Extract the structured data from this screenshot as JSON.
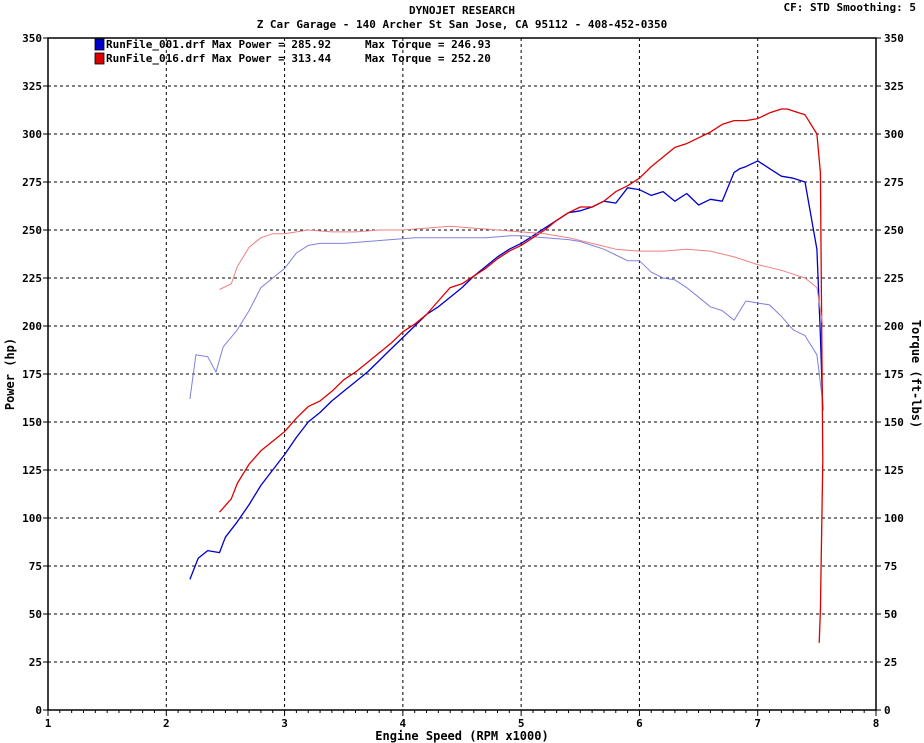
{
  "chart_data": {
    "type": "line",
    "title": "DYNOJET RESEARCH",
    "subtitle": "Z Car Garage - 140 Archer St San Jose, CA 95112 - 408-452-0350",
    "settings": "CF: STD  Smoothing: 5",
    "xlabel": "Engine Speed (RPM x1000)",
    "ylabel_left": "Power (hp)",
    "ylabel_right": "Torque (ft-lbs)",
    "xlim": [
      1,
      8
    ],
    "ylim": [
      0,
      350
    ],
    "x_ticks": [
      1,
      2,
      3,
      4,
      5,
      6,
      7,
      8
    ],
    "y_ticks": [
      0,
      25,
      50,
      75,
      100,
      125,
      150,
      175,
      200,
      225,
      250,
      275,
      300,
      325,
      350
    ],
    "grid": true,
    "legend_position": "top-left",
    "legend": [
      {
        "label": "RunFile_001.drf Max Power = 285.92",
        "torque_label": "Max Torque = 246.93",
        "color": "#0000cc"
      },
      {
        "label": "RunFile_016.drf Max Power = 313.44",
        "torque_label": "Max Torque = 252.20",
        "color": "#dd0000"
      }
    ],
    "series": [
      {
        "name": "RunFile_001.drf",
        "measure": "power",
        "color": "#0000cc",
        "x": [
          2.2,
          2.27,
          2.35,
          2.45,
          2.5,
          2.6,
          2.7,
          2.8,
          2.9,
          3.0,
          3.1,
          3.2,
          3.3,
          3.4,
          3.5,
          3.6,
          3.7,
          3.8,
          3.9,
          4.0,
          4.1,
          4.2,
          4.3,
          4.4,
          4.5,
          4.6,
          4.7,
          4.8,
          4.9,
          5.0,
          5.1,
          5.2,
          5.3,
          5.4,
          5.5,
          5.6,
          5.7,
          5.8,
          5.9,
          6.0,
          6.1,
          6.2,
          6.3,
          6.4,
          6.5,
          6.6,
          6.7,
          6.8,
          6.85,
          6.9,
          7.0,
          7.05,
          7.1,
          7.2,
          7.3,
          7.4,
          7.5,
          7.53,
          7.55
        ],
        "values": [
          68,
          79,
          83,
          82,
          90,
          98,
          107,
          117,
          125,
          133,
          142,
          150,
          155,
          161,
          166,
          171,
          176,
          182,
          188,
          194,
          200,
          206,
          210,
          215,
          220,
          226,
          231,
          236,
          240,
          243,
          247,
          251,
          255,
          259,
          260,
          262,
          265,
          264,
          272,
          271,
          268,
          270,
          265,
          269,
          263,
          266,
          265,
          280,
          282,
          283,
          286,
          284,
          282,
          278,
          277,
          275,
          240,
          195,
          156
        ]
      },
      {
        "name": "RunFile_001.drf",
        "measure": "torque",
        "color": "#8080dd",
        "x": [
          2.2,
          2.25,
          2.35,
          2.42,
          2.48,
          2.6,
          2.7,
          2.8,
          2.9,
          3.0,
          3.1,
          3.2,
          3.3,
          3.5,
          3.7,
          3.9,
          4.1,
          4.3,
          4.5,
          4.7,
          4.9,
          5.0,
          5.2,
          5.4,
          5.5,
          5.6,
          5.7,
          5.8,
          5.9,
          6.0,
          6.1,
          6.2,
          6.3,
          6.4,
          6.5,
          6.6,
          6.7,
          6.8,
          6.9,
          7.0,
          7.1,
          7.2,
          7.3,
          7.4,
          7.5,
          7.55
        ],
        "values": [
          162,
          185,
          184,
          176,
          189,
          198,
          208,
          220,
          225,
          230,
          238,
          242,
          243,
          243,
          244,
          245,
          246,
          246,
          246,
          246,
          247,
          247,
          246,
          245,
          244,
          242,
          240,
          237,
          234,
          234,
          228,
          225,
          224,
          220,
          215,
          210,
          208,
          203,
          213,
          212,
          211,
          205,
          198,
          195,
          185,
          160
        ]
      },
      {
        "name": "RunFile_016.drf",
        "measure": "power",
        "color": "#dd0000",
        "x": [
          2.45,
          2.55,
          2.6,
          2.7,
          2.8,
          2.9,
          3.0,
          3.1,
          3.2,
          3.3,
          3.4,
          3.5,
          3.6,
          3.7,
          3.8,
          3.9,
          4.0,
          4.1,
          4.2,
          4.3,
          4.4,
          4.5,
          4.6,
          4.7,
          4.8,
          4.9,
          5.0,
          5.1,
          5.2,
          5.3,
          5.4,
          5.5,
          5.6,
          5.7,
          5.8,
          5.9,
          6.0,
          6.1,
          6.2,
          6.3,
          6.4,
          6.5,
          6.6,
          6.7,
          6.8,
          6.9,
          7.0,
          7.1,
          7.2,
          7.25,
          7.3,
          7.4,
          7.5,
          7.53,
          7.55,
          7.53,
          7.52
        ],
        "values": [
          103,
          110,
          118,
          128,
          135,
          140,
          145,
          152,
          158,
          161,
          166,
          172,
          176,
          181,
          186,
          191,
          197,
          201,
          206,
          213,
          220,
          222,
          226,
          230,
          235,
          239,
          242,
          246,
          250,
          255,
          259,
          262,
          262,
          265,
          270,
          273,
          277,
          283,
          288,
          293,
          295,
          298,
          301,
          305,
          307,
          307,
          308,
          311,
          313,
          313,
          312,
          310,
          300,
          280,
          130,
          52,
          35
        ]
      },
      {
        "name": "RunFile_016.drf",
        "measure": "torque",
        "color": "#ee8080",
        "x": [
          2.45,
          2.55,
          2.6,
          2.7,
          2.8,
          2.9,
          3.0,
          3.2,
          3.4,
          3.6,
          3.8,
          4.0,
          4.2,
          4.4,
          4.6,
          4.8,
          5.0,
          5.2,
          5.4,
          5.6,
          5.8,
          6.0,
          6.2,
          6.4,
          6.6,
          6.8,
          7.0,
          7.2,
          7.3,
          7.4,
          7.5,
          7.55
        ],
        "values": [
          219,
          222,
          231,
          241,
          246,
          248,
          248,
          250,
          249,
          249,
          250,
          250,
          251,
          252,
          251,
          250,
          249,
          248,
          246,
          243,
          240,
          239,
          239,
          240,
          239,
          236,
          232,
          229,
          227,
          225,
          220,
          200
        ]
      }
    ]
  }
}
